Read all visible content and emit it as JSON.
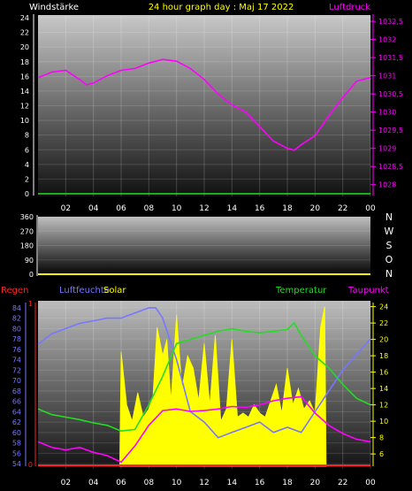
{
  "header": {
    "left_label": "Windstärke",
    "title": "24 hour graph day : Maj 17 2022",
    "right_label": "Luftdruck"
  },
  "colors": {
    "background": "#000000",
    "pressure": "#ff00ff",
    "temperature": "#22dd22",
    "dewpoint": "#ff00ff",
    "humidity": "#7777ff",
    "solar": "#ffff00",
    "rain": "#ff2222",
    "wind_axis": "#ffffff",
    "title": "#ffff00"
  },
  "chart_data": [
    {
      "type": "line",
      "name": "wind-pressure-panel",
      "x_ticks": [
        "02",
        "04",
        "06",
        "08",
        "10",
        "12",
        "14",
        "16",
        "18",
        "20",
        "22",
        "00"
      ],
      "y_left_ticks": [
        "0",
        "2",
        "4",
        "6",
        "8",
        "10",
        "12",
        "14",
        "16",
        "18",
        "20",
        "22",
        "24"
      ],
      "y_left_range": [
        0,
        24
      ],
      "y_right_ticks": [
        "1028",
        "1028,5",
        "1029",
        "1029,5",
        "1030",
        "1030,5",
        "1031",
        "1031,5",
        "1032",
        "1032,5"
      ],
      "y_right_range": [
        1027.75,
        1032.6
      ],
      "grid": true,
      "series": [
        {
          "name": "Luftdruck",
          "axis": "right",
          "x": [
            0,
            1,
            2,
            3,
            3.5,
            4,
            5,
            6,
            7,
            8,
            9,
            10,
            11,
            12,
            13,
            14,
            15,
            16,
            17,
            18,
            18.5,
            19,
            20,
            21,
            22,
            23,
            24
          ],
          "y": [
            1030.95,
            1031.1,
            1031.15,
            1030.9,
            1030.75,
            1030.8,
            1031.0,
            1031.15,
            1031.2,
            1031.35,
            1031.45,
            1031.4,
            1031.2,
            1030.9,
            1030.5,
            1030.2,
            1030.0,
            1029.6,
            1029.2,
            1029.0,
            1028.95,
            1029.1,
            1029.35,
            1029.9,
            1030.4,
            1030.85,
            1030.95
          ]
        },
        {
          "name": "Windstärke",
          "axis": "left",
          "x": [
            0,
            24
          ],
          "y": [
            0,
            0
          ]
        }
      ]
    },
    {
      "type": "line",
      "name": "wind-direction-panel",
      "x_ticks": [],
      "y_left_ticks": [
        "0",
        "90",
        "180",
        "270",
        "360"
      ],
      "y_left_range": [
        0,
        360
      ],
      "y_right_ticks": [
        "N",
        "W",
        "S",
        "O",
        "N"
      ],
      "series": [
        {
          "name": "Windrichtung",
          "x": [
            0,
            24
          ],
          "y": [
            0,
            0
          ]
        }
      ]
    },
    {
      "type": "area",
      "name": "climate-panel",
      "labels": {
        "rain": "Regen",
        "humidity": "Luftfeuchte",
        "solar": "Solar",
        "temperature": "Temperatur",
        "dewpoint": "Taupunkt"
      },
      "x_ticks": [
        "02",
        "04",
        "06",
        "08",
        "10",
        "12",
        "14",
        "16",
        "18",
        "20",
        "22",
        "00"
      ],
      "y_left_ticks": [
        "54",
        "56",
        "58",
        "60",
        "62",
        "64",
        "66",
        "68",
        "70",
        "72",
        "74",
        "76",
        "78",
        "80",
        "82",
        "84"
      ],
      "y_left_range": [
        53.5,
        85
      ],
      "rain_ticks": [
        "0",
        "1"
      ],
      "y_right_ticks": [
        "6",
        "8",
        "10",
        "12",
        "14",
        "16",
        "18",
        "20",
        "22",
        "24"
      ],
      "y_right_range": [
        4.5,
        24.5
      ],
      "series": [
        {
          "name": "Luftfeuchte",
          "axis": "left",
          "x": [
            0,
            1,
            2,
            3,
            4,
            5,
            6,
            7,
            8,
            8.5,
            9,
            10,
            11,
            12,
            13,
            14,
            15,
            16,
            17,
            18,
            19,
            20,
            21,
            22,
            23,
            24
          ],
          "y": [
            77,
            79,
            80,
            81,
            81.5,
            82,
            82,
            83,
            84,
            84,
            82,
            74,
            64,
            62,
            59,
            60,
            61,
            62,
            60,
            61,
            60,
            64,
            68,
            72,
            75,
            78
          ]
        },
        {
          "name": "Temperatur",
          "axis": "right",
          "x": [
            0,
            1,
            2,
            3,
            4,
            5,
            6,
            7,
            8,
            9,
            10,
            11,
            12,
            13,
            14,
            15,
            16,
            17,
            18,
            18.5,
            19,
            20,
            21,
            22,
            23,
            24
          ],
          "y": [
            11.5,
            10.8,
            10.5,
            10.2,
            9.8,
            9.5,
            8.8,
            9.0,
            12.0,
            15.5,
            19.5,
            20.0,
            20.5,
            21.0,
            21.3,
            21.0,
            20.8,
            21.0,
            21.2,
            22.0,
            20.5,
            18.0,
            16.5,
            14.5,
            12.8,
            12.0
          ]
        },
        {
          "name": "Taupunkt",
          "axis": "right",
          "x": [
            0,
            1,
            2,
            3,
            4,
            5,
            6,
            7,
            8,
            9,
            10,
            11,
            12,
            13,
            14,
            15,
            16,
            17,
            18,
            19,
            20,
            21,
            22,
            23,
            24
          ],
          "y": [
            7.5,
            6.8,
            6.5,
            6.8,
            6.2,
            5.8,
            5.0,
            7.0,
            9.5,
            11.3,
            11.5,
            11.2,
            11.3,
            11.5,
            11.8,
            11.7,
            12.0,
            12.5,
            12.8,
            13.0,
            11.0,
            9.5,
            8.5,
            7.8,
            7.5
          ]
        },
        {
          "name": "Solar",
          "axis": "right",
          "x": [
            5.9,
            6.0,
            6.4,
            6.8,
            7.2,
            7.6,
            8.0,
            8.3,
            8.6,
            9.0,
            9.3,
            9.6,
            10.0,
            10.4,
            10.8,
            11.2,
            11.6,
            12.0,
            12.4,
            12.8,
            13.2,
            13.6,
            14.0,
            14.4,
            14.8,
            15.2,
            15.6,
            16.0,
            16.4,
            16.8,
            17.2,
            17.6,
            18.0,
            18.4,
            18.8,
            19.2,
            19.6,
            20.0,
            20.4,
            20.7,
            20.8
          ],
          "y": [
            4.5,
            18.5,
            12.0,
            10.0,
            13.5,
            10.5,
            11.5,
            13.0,
            21.5,
            18.0,
            20.0,
            12.5,
            23.0,
            14.0,
            18.0,
            16.5,
            12.5,
            19.5,
            12.0,
            20.5,
            10.0,
            11.5,
            20.0,
            10.5,
            11.0,
            10.5,
            12.0,
            11.0,
            10.5,
            12.5,
            14.5,
            11.0,
            16.5,
            12.0,
            14.0,
            11.5,
            12.5,
            11.0,
            21.5,
            24.0,
            4.5
          ]
        },
        {
          "name": "Regen",
          "axis": "rain",
          "x": [
            0,
            24
          ],
          "y": [
            0,
            0
          ]
        }
      ]
    }
  ]
}
